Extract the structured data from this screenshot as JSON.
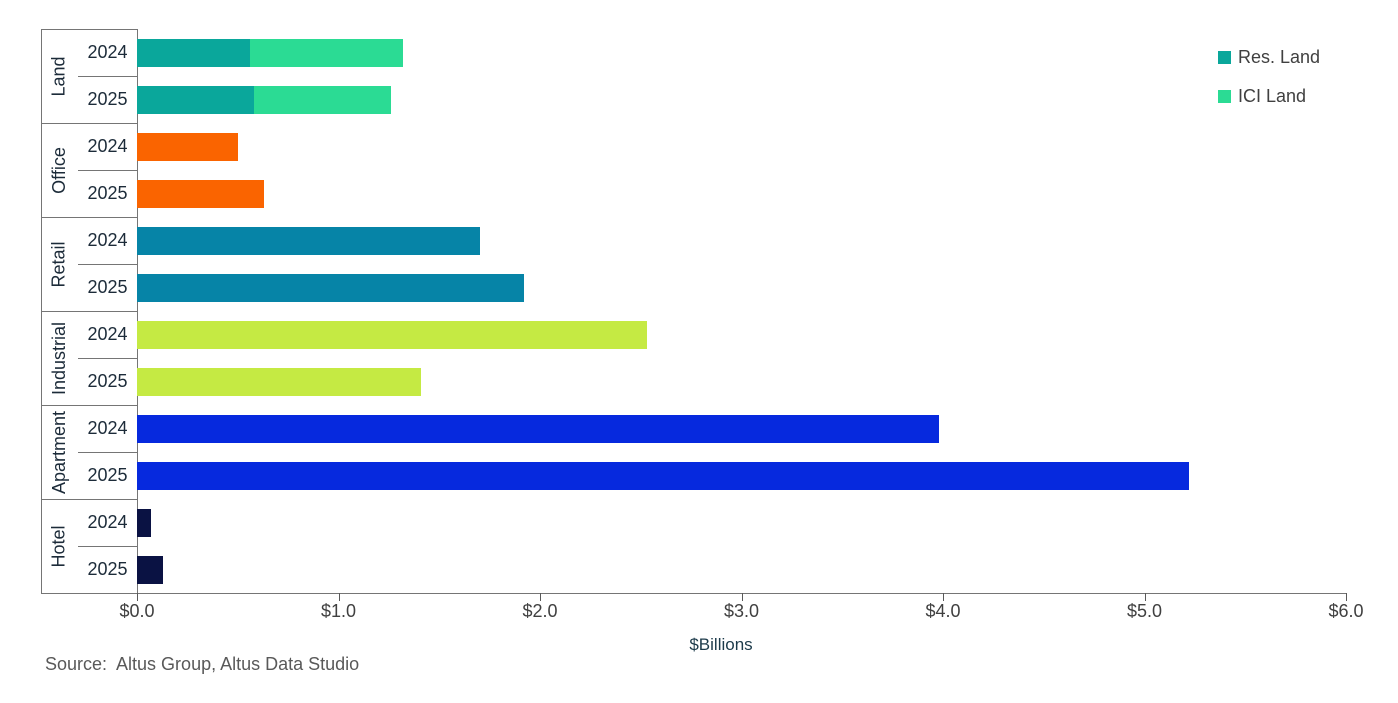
{
  "chart_data": {
    "type": "bar",
    "orientation": "horizontal",
    "title": "",
    "xlabel": "$Billions",
    "xlim": [
      0,
      6
    ],
    "x_ticks": [
      "$0.0",
      "$1.0",
      "$2.0",
      "$3.0",
      "$4.0",
      "$5.0",
      "$6.0"
    ],
    "grid": false,
    "legend_position": "top-right",
    "legend": [
      {
        "label": "Res. Land",
        "color": "#0AA79B"
      },
      {
        "label": "ICI Land",
        "color": "#2BDB94"
      }
    ],
    "categories": [
      {
        "name": "Land",
        "rows": [
          {
            "year": "2024",
            "segments": [
              {
                "name": "Res. Land",
                "value": 0.56,
                "color": "#0AA79B"
              },
              {
                "name": "ICI Land",
                "value": 0.76,
                "color": "#2BDB94"
              }
            ]
          },
          {
            "year": "2025",
            "segments": [
              {
                "name": "Res. Land",
                "value": 0.58,
                "color": "#0AA79B"
              },
              {
                "name": "ICI Land",
                "value": 0.68,
                "color": "#2BDB94"
              }
            ]
          }
        ]
      },
      {
        "name": "Office",
        "rows": [
          {
            "year": "2024",
            "segments": [
              {
                "value": 0.5,
                "color": "#FA6400"
              }
            ]
          },
          {
            "year": "2025",
            "segments": [
              {
                "value": 0.63,
                "color": "#FA6400"
              }
            ]
          }
        ]
      },
      {
        "name": "Retail",
        "rows": [
          {
            "year": "2024",
            "segments": [
              {
                "value": 1.7,
                "color": "#0684A7"
              }
            ]
          },
          {
            "year": "2025",
            "segments": [
              {
                "value": 1.92,
                "color": "#0684A7"
              }
            ]
          }
        ]
      },
      {
        "name": "Industrial",
        "rows": [
          {
            "year": "2024",
            "segments": [
              {
                "value": 2.53,
                "color": "#C5EA43"
              }
            ]
          },
          {
            "year": "2025",
            "segments": [
              {
                "value": 1.41,
                "color": "#C5EA43"
              }
            ]
          }
        ]
      },
      {
        "name": "Apartment",
        "rows": [
          {
            "year": "2024",
            "segments": [
              {
                "value": 3.98,
                "color": "#0629DE"
              }
            ]
          },
          {
            "year": "2025",
            "segments": [
              {
                "value": 5.22,
                "color": "#0629DE"
              }
            ]
          }
        ]
      },
      {
        "name": "Hotel",
        "rows": [
          {
            "year": "2024",
            "segments": [
              {
                "value": 0.07,
                "color": "#0A1243"
              }
            ]
          },
          {
            "year": "2025",
            "segments": [
              {
                "value": 0.13,
                "color": "#0A1243"
              }
            ]
          }
        ]
      }
    ]
  },
  "footer": {
    "source_note": "Source:  Altus Group, Altus Data Studio"
  }
}
